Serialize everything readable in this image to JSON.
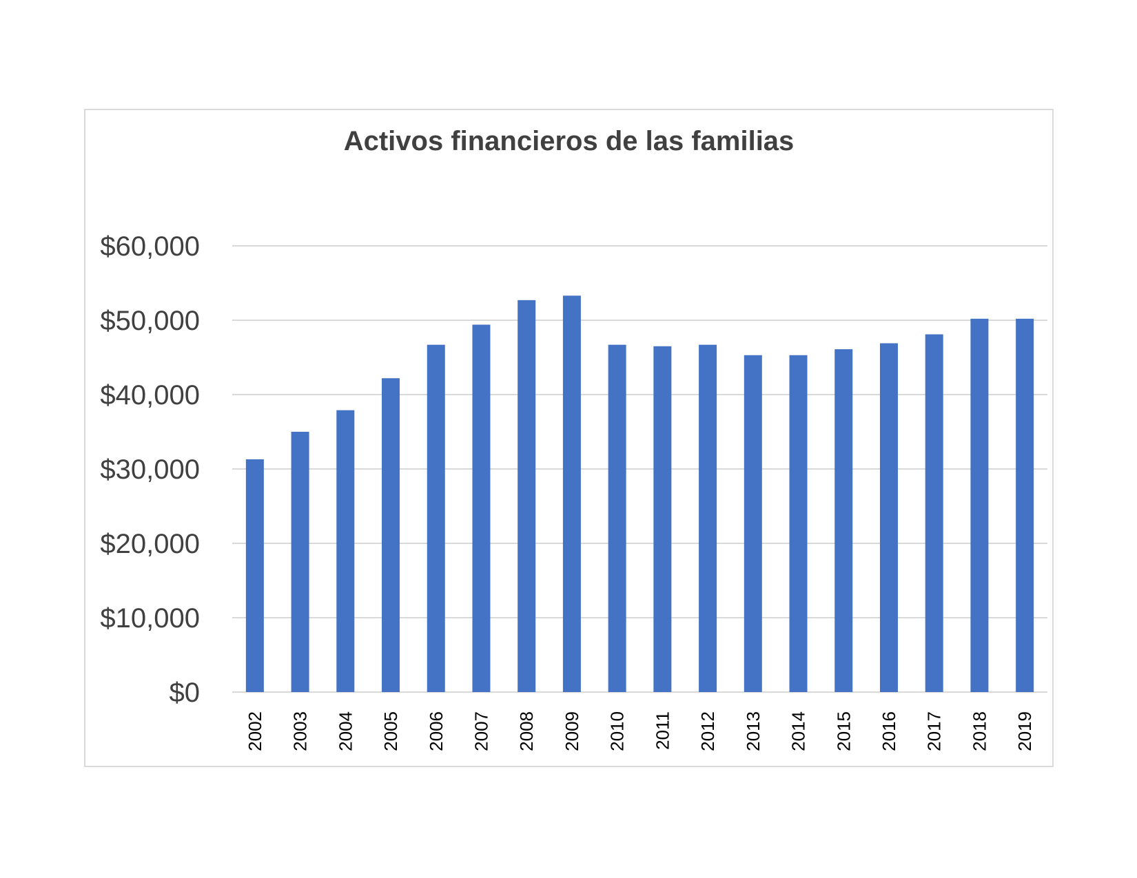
{
  "chart_data": {
    "type": "bar",
    "title": "Activos financieros de las familias",
    "xlabel": "",
    "ylabel": "",
    "categories": [
      "2002",
      "2003",
      "2004",
      "2005",
      "2006",
      "2007",
      "2008",
      "2009",
      "2010",
      "2011",
      "2012",
      "2013",
      "2014",
      "2015",
      "2016",
      "2017",
      "2018",
      "2019"
    ],
    "values": [
      31300,
      35000,
      37900,
      42200,
      46700,
      49400,
      52700,
      53300,
      46700,
      46500,
      46700,
      45300,
      45300,
      46100,
      46900,
      48100,
      50200,
      50200
    ],
    "ylim": [
      0,
      60000
    ],
    "yticks": [
      0,
      10000,
      20000,
      30000,
      40000,
      50000,
      60000
    ],
    "ytick_labels": [
      "$0",
      "$10,000",
      "$20,000",
      "$30,000",
      "$40,000",
      "$50,000",
      "$60,000"
    ],
    "grid": true,
    "legend": "none",
    "bar_color": "#4472c4",
    "grid_color": "#d9d9d9"
  }
}
